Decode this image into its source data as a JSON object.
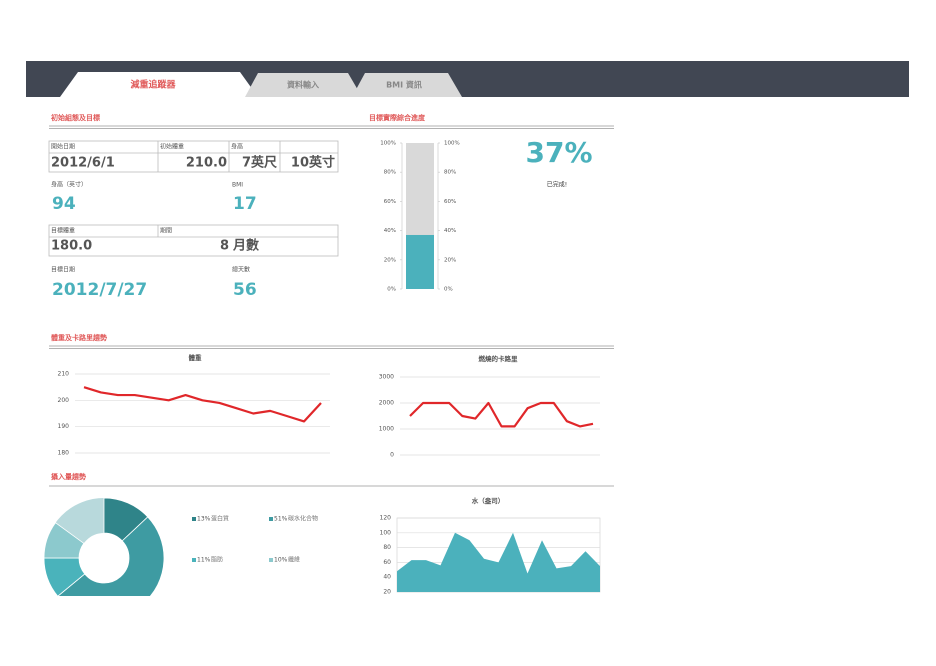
{
  "tabs": [
    "減重追蹤器",
    "資料輸入",
    "BMI 資訊"
  ],
  "sections": [
    "初始組態及目標",
    "目標實際綜合進度",
    "體重及卡路里趨勢",
    "攝入量趨勢"
  ],
  "setup": {
    "row1": {
      "labels": [
        "開始日期",
        "初始體重",
        "身高"
      ],
      "values": [
        "2012/6/1",
        "210.0",
        "7英尺",
        "10英寸"
      ]
    },
    "height_in": {
      "label": "身高（英寸）",
      "value": 94
    },
    "bmi": {
      "label": "BMI",
      "value": 17
    },
    "goal_weight": {
      "label": "目標體重",
      "value": "180.0"
    },
    "period": {
      "label": "期間",
      "value": 8,
      "unit": "月數"
    },
    "goal_date": {
      "label": "目標日期",
      "value": "2012/7/27"
    },
    "total_days": {
      "label": "總天數",
      "value": 56
    }
  },
  "chart_data": [
    {
      "type": "bar",
      "values": [
        37
      ],
      "value_labels": [
        "37%"
      ],
      "annotation": "已完成!",
      "color": "#4bb1bc",
      "ylim": [
        0,
        100
      ],
      "yticks": [
        {
          "value": 0,
          "label": "0%"
        },
        {
          "value": 20,
          "label": "20%"
        },
        {
          "value": 40,
          "label": "40%"
        },
        {
          "value": 60,
          "label": "60%"
        },
        {
          "value": 80,
          "label": "80%"
        },
        {
          "value": 100,
          "label": "100%"
        }
      ]
    },
    {
      "type": "line",
      "title": "體重",
      "categories": [
        null,
        null,
        null,
        null,
        null,
        null,
        null,
        null,
        null,
        null,
        null,
        null,
        null,
        null,
        null
      ],
      "series": [
        {
          "color": "#e0272a",
          "values": [
            205,
            203,
            202,
            202,
            201,
            200,
            202,
            200,
            199,
            197,
            195,
            196,
            194,
            192,
            199
          ]
        }
      ],
      "ylim": [
        180,
        210
      ],
      "yticks": [
        180,
        190,
        200,
        210
      ],
      "grid": true
    },
    {
      "type": "line",
      "title": "燃燒的卡路里",
      "categories": [
        null,
        null,
        null,
        null,
        null,
        null,
        null,
        null,
        null,
        null,
        null,
        null,
        null,
        null,
        null
      ],
      "series": [
        {
          "color": "#e0272a",
          "values": [
            1500,
            2000,
            2000,
            2000,
            1500,
            1400,
            2000,
            1100,
            1100,
            1800,
            2000,
            2000,
            1300,
            1100,
            1200
          ]
        }
      ],
      "ylim": [
        0,
        3000
      ],
      "yticks": [
        0,
        1000,
        2000,
        3000
      ],
      "grid": true
    },
    {
      "type": "pie",
      "donut": true,
      "categories": [
        "蛋白質",
        "碳水化合物",
        "脂肪",
        "纖維"
      ],
      "values": [
        13,
        51,
        11,
        10
      ],
      "value_labels": [
        "13%",
        "51%",
        "11%",
        "10%"
      ],
      "colors": [
        "#2f8489",
        "#3e9ba2",
        "#4ab3bb",
        "#8cc9cd"
      ]
    },
    {
      "type": "area",
      "title": "水（盎司）",
      "categories": [
        null,
        null,
        null,
        null,
        null,
        null,
        null,
        null,
        null,
        null,
        null,
        null,
        null,
        null,
        null
      ],
      "series": [
        {
          "color": "#4bb1bc",
          "values": [
            48,
            63,
            63,
            56,
            100,
            90,
            65,
            60,
            100,
            45,
            90,
            52,
            55,
            75,
            55
          ]
        }
      ],
      "ylim": [
        20,
        120
      ],
      "yticks": [
        20,
        40,
        60,
        80,
        100,
        120
      ],
      "grid": true
    }
  ]
}
